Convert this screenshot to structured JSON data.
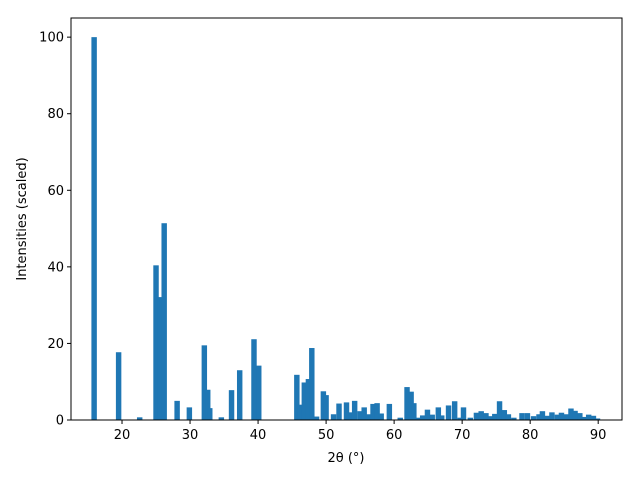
{
  "chart_data": {
    "type": "bar",
    "xlabel": "2θ (°)",
    "ylabel": "Intensities (scaled)",
    "xlim": [
      12.5,
      93.5
    ],
    "ylim": [
      0,
      105
    ],
    "xticks": [
      20,
      30,
      40,
      50,
      60,
      70,
      80,
      90
    ],
    "yticks": [
      0,
      20,
      40,
      60,
      80,
      100
    ],
    "grid": false,
    "bar_color": "#1f77b4",
    "bar_width": 0.8,
    "series": [
      {
        "x": [
          15.9,
          19.5,
          22.6,
          25.0,
          25.6,
          26.2,
          28.1,
          29.9,
          32.1,
          32.6,
          32.9,
          34.6,
          36.1,
          37.3,
          39.4,
          40.1,
          45.7,
          46.2,
          46.8,
          47.4,
          47.9,
          48.6,
          49.6,
          50.0,
          51.1,
          51.9,
          53.0,
          53.7,
          54.2,
          55.0,
          55.6,
          56.2,
          56.9,
          57.5,
          58.1,
          59.3,
          60.9,
          61.9,
          62.5,
          62.9,
          63.6,
          64.2,
          64.9,
          65.6,
          66.5,
          67.0,
          68.0,
          68.9,
          69.7,
          70.2,
          71.2,
          72.1,
          72.8,
          73.5,
          74.2,
          74.8,
          75.5,
          76.2,
          76.8,
          77.6,
          78.8,
          79.6,
          80.5,
          81.3,
          81.8,
          82.5,
          83.2,
          84.0,
          84.6,
          85.3,
          86.0,
          86.6,
          87.3,
          88.0,
          88.6,
          89.3,
          89.9
        ],
        "values": [
          100,
          17.7,
          0.7,
          40.4,
          32.1,
          51.4,
          5.0,
          3.3,
          19.5,
          7.9,
          3.1,
          0.7,
          7.8,
          13.0,
          21.1,
          14.2,
          11.8,
          4.0,
          9.8,
          10.7,
          18.8,
          0.9,
          7.5,
          6.5,
          1.5,
          4.3,
          4.6,
          2.0,
          5.0,
          2.3,
          3.3,
          1.5,
          4.2,
          4.4,
          1.7,
          4.2,
          0.6,
          8.6,
          7.4,
          4.4,
          0.6,
          1.2,
          2.7,
          1.4,
          3.3,
          1.2,
          3.8,
          4.9,
          0.6,
          3.3,
          0.6,
          1.9,
          2.3,
          1.8,
          1.0,
          1.6,
          4.9,
          2.6,
          1.5,
          0.6,
          1.8,
          1.8,
          1.0,
          1.5,
          2.3,
          1.1,
          2.0,
          1.4,
          1.9,
          1.5,
          3.0,
          2.4,
          1.8,
          0.8,
          1.4,
          1.1,
          0.4
        ]
      }
    ]
  }
}
